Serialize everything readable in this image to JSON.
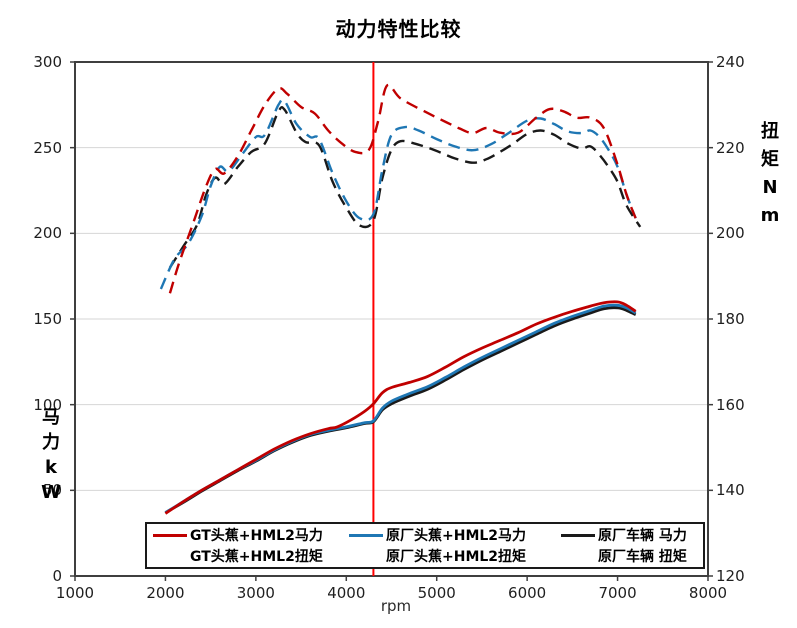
{
  "title": "动力特性比较",
  "axes": {
    "x": {
      "label": "rpm",
      "min": 1000,
      "max": 8000,
      "ticks": [
        1000,
        2000,
        3000,
        4000,
        5000,
        6000,
        7000,
        8000
      ]
    },
    "y_left": {
      "label_chars": [
        "马",
        "力",
        "k",
        "W"
      ],
      "min": 0,
      "max": 300,
      "ticks": [
        300,
        250,
        200,
        150,
        100,
        50,
        0
      ]
    },
    "y_right": {
      "label_chars": [
        "扭",
        "矩",
        "N",
        "m"
      ],
      "min": 120,
      "max": 240,
      "ticks": [
        240,
        220,
        200,
        180,
        160,
        140,
        120
      ]
    }
  },
  "colors": {
    "red": "#C00000",
    "blue": "#1F77B4",
    "black": "#1A1A1A",
    "reference_line": "#FF0000",
    "grid": "#D6D6D6",
    "frame": "#3F3F3F",
    "tick_text": "#1F1F1F"
  },
  "reference_line": {
    "rpm": 4300
  },
  "chart_data": {
    "type": "line",
    "x_unit": "rpm",
    "xlim": [
      1000,
      8000
    ],
    "ylim_left_kW": [
      0,
      300
    ],
    "ylim_right_Nm": [
      120,
      240
    ],
    "grid": "horizontal",
    "legend_position": "bottom-inside",
    "series": [
      {
        "name": "GT头蕉+HML2马力",
        "axis": "left",
        "unit": "kW",
        "color": "#C00000",
        "dash": false,
        "points": [
          [
            2000,
            36.5
          ],
          [
            2200,
            43.5
          ],
          [
            2400,
            50
          ],
          [
            2600,
            56
          ],
          [
            2800,
            62
          ],
          [
            3000,
            68
          ],
          [
            3200,
            74
          ],
          [
            3400,
            79
          ],
          [
            3600,
            83
          ],
          [
            3800,
            86
          ],
          [
            3900,
            87
          ],
          [
            4050,
            91
          ],
          [
            4200,
            96
          ],
          [
            4300,
            100.5
          ],
          [
            4400,
            107
          ],
          [
            4500,
            110
          ],
          [
            4700,
            113
          ],
          [
            4900,
            116.5
          ],
          [
            5100,
            122
          ],
          [
            5300,
            128
          ],
          [
            5500,
            133
          ],
          [
            5700,
            137.5
          ],
          [
            5900,
            142
          ],
          [
            6100,
            147
          ],
          [
            6300,
            151
          ],
          [
            6500,
            154.5
          ],
          [
            6700,
            157.5
          ],
          [
            6850,
            159.5
          ],
          [
            7000,
            160
          ],
          [
            7100,
            158
          ],
          [
            7200,
            154.5
          ]
        ]
      },
      {
        "name": "原厂头蕉+HML2马力",
        "axis": "left",
        "unit": "kW",
        "color": "#1F77B4",
        "dash": false,
        "points": [
          [
            2000,
            37
          ],
          [
            2200,
            43.5
          ],
          [
            2400,
            50
          ],
          [
            2600,
            56
          ],
          [
            2800,
            62
          ],
          [
            3000,
            67.5
          ],
          [
            3200,
            73.5
          ],
          [
            3400,
            78.5
          ],
          [
            3600,
            82.5
          ],
          [
            3800,
            85
          ],
          [
            4000,
            87
          ],
          [
            4200,
            89.5
          ],
          [
            4300,
            90.5
          ],
          [
            4400,
            98
          ],
          [
            4500,
            102
          ],
          [
            4700,
            106.5
          ],
          [
            4900,
            110.5
          ],
          [
            5100,
            116
          ],
          [
            5300,
            122
          ],
          [
            5500,
            127.5
          ],
          [
            5700,
            132.5
          ],
          [
            5900,
            137.5
          ],
          [
            6100,
            142.5
          ],
          [
            6300,
            147.5
          ],
          [
            6500,
            151.5
          ],
          [
            6700,
            155
          ],
          [
            6850,
            157.5
          ],
          [
            7000,
            158
          ],
          [
            7100,
            156.5
          ],
          [
            7200,
            153.5
          ]
        ]
      },
      {
        "name": "原厂车辆 马力",
        "axis": "left",
        "unit": "kW",
        "color": "#1A1A1A",
        "dash": false,
        "points": [
          [
            2000,
            37
          ],
          [
            2200,
            43
          ],
          [
            2400,
            49.5
          ],
          [
            2600,
            55.5
          ],
          [
            2800,
            61.5
          ],
          [
            3000,
            67
          ],
          [
            3200,
            73
          ],
          [
            3400,
            78
          ],
          [
            3600,
            82
          ],
          [
            3800,
            84.5
          ],
          [
            4000,
            86.5
          ],
          [
            4200,
            89
          ],
          [
            4300,
            90
          ],
          [
            4400,
            97
          ],
          [
            4500,
            100.5
          ],
          [
            4700,
            105
          ],
          [
            4900,
            109
          ],
          [
            5100,
            114.5
          ],
          [
            5300,
            120.5
          ],
          [
            5500,
            126
          ],
          [
            5700,
            131
          ],
          [
            5900,
            136
          ],
          [
            6100,
            141
          ],
          [
            6300,
            146
          ],
          [
            6500,
            150
          ],
          [
            6700,
            153.5
          ],
          [
            6850,
            156
          ],
          [
            7000,
            156.5
          ],
          [
            7100,
            155
          ],
          [
            7200,
            152.5
          ]
        ]
      },
      {
        "name": "GT头蕉+HML2扭矩",
        "axis": "right",
        "unit": "Nm",
        "color": "#C00000",
        "dash": true,
        "points": [
          [
            2050,
            186
          ],
          [
            2150,
            193
          ],
          [
            2300,
            202
          ],
          [
            2450,
            211
          ],
          [
            2550,
            215
          ],
          [
            2650,
            214
          ],
          [
            2800,
            218
          ],
          [
            2950,
            224
          ],
          [
            3100,
            230
          ],
          [
            3250,
            233.8
          ],
          [
            3350,
            232.5
          ],
          [
            3500,
            229.5
          ],
          [
            3650,
            228
          ],
          [
            3800,
            224
          ],
          [
            3950,
            221
          ],
          [
            4100,
            219
          ],
          [
            4250,
            219.5
          ],
          [
            4350,
            226
          ],
          [
            4450,
            234.5
          ],
          [
            4600,
            231.5
          ],
          [
            4880,
            228.3
          ],
          [
            5100,
            226
          ],
          [
            5250,
            224.5
          ],
          [
            5400,
            223.4
          ],
          [
            5550,
            224.6
          ],
          [
            5700,
            223.5
          ],
          [
            5900,
            223.5
          ],
          [
            6100,
            227
          ],
          [
            6250,
            229
          ],
          [
            6400,
            228.5
          ],
          [
            6550,
            227
          ],
          [
            6700,
            227
          ],
          [
            6850,
            224.5
          ],
          [
            7000,
            216
          ],
          [
            7100,
            209
          ],
          [
            7200,
            203.5
          ]
        ]
      },
      {
        "name": "原厂头蕉+HML2扭矩",
        "axis": "right",
        "unit": "Nm",
        "color": "#1F77B4",
        "dash": true,
        "points": [
          [
            1950,
            187
          ],
          [
            2100,
            194
          ],
          [
            2250,
            197.5
          ],
          [
            2400,
            204
          ],
          [
            2500,
            211
          ],
          [
            2600,
            215.5
          ],
          [
            2700,
            214.5
          ],
          [
            2850,
            218.5
          ],
          [
            3000,
            222.5
          ],
          [
            3100,
            223
          ],
          [
            3250,
            230
          ],
          [
            3320,
            230.8
          ],
          [
            3450,
            225.5
          ],
          [
            3600,
            222.5
          ],
          [
            3700,
            222
          ],
          [
            3850,
            214
          ],
          [
            4000,
            207.5
          ],
          [
            4150,
            203.5
          ],
          [
            4300,
            204.5
          ],
          [
            4400,
            215
          ],
          [
            4500,
            223
          ],
          [
            4650,
            224.8
          ],
          [
            4800,
            224
          ],
          [
            5000,
            222
          ],
          [
            5200,
            220.3
          ],
          [
            5400,
            219.4
          ],
          [
            5600,
            220.8
          ],
          [
            5800,
            223.5
          ],
          [
            6000,
            226.3
          ],
          [
            6150,
            226.8
          ],
          [
            6300,
            225.5
          ],
          [
            6450,
            223.8
          ],
          [
            6600,
            223.4
          ],
          [
            6700,
            224
          ],
          [
            6800,
            222.5
          ],
          [
            6900,
            219.5
          ],
          [
            7000,
            215.5
          ],
          [
            7100,
            209
          ],
          [
            7200,
            203.5
          ]
        ]
      },
      {
        "name": "原厂车辆 扭矩",
        "axis": "right",
        "unit": "Nm",
        "color": "#1A1A1A",
        "dash": true,
        "points": [
          [
            2050,
            192
          ],
          [
            2200,
            197
          ],
          [
            2350,
            202
          ],
          [
            2450,
            209
          ],
          [
            2550,
            213
          ],
          [
            2650,
            211.5
          ],
          [
            2800,
            215.5
          ],
          [
            2950,
            219
          ],
          [
            3100,
            221
          ],
          [
            3250,
            228.5
          ],
          [
            3320,
            228.8
          ],
          [
            3450,
            223.5
          ],
          [
            3550,
            221.3
          ],
          [
            3700,
            220.5
          ],
          [
            3850,
            212
          ],
          [
            4000,
            206
          ],
          [
            4150,
            201.8
          ],
          [
            4300,
            203
          ],
          [
            4400,
            213
          ],
          [
            4500,
            219.5
          ],
          [
            4600,
            221.5
          ],
          [
            4750,
            221
          ],
          [
            4900,
            220
          ],
          [
            5050,
            218.8
          ],
          [
            5200,
            217.5
          ],
          [
            5400,
            216.5
          ],
          [
            5550,
            217.3
          ],
          [
            5700,
            219
          ],
          [
            5850,
            221
          ],
          [
            6000,
            223.2
          ],
          [
            6150,
            224
          ],
          [
            6300,
            223
          ],
          [
            6450,
            221
          ],
          [
            6600,
            219.8
          ],
          [
            6700,
            220.3
          ],
          [
            6800,
            218.3
          ],
          [
            6900,
            215.5
          ],
          [
            7000,
            212
          ],
          [
            7100,
            206.5
          ],
          [
            7250,
            201.5
          ]
        ]
      }
    ]
  }
}
